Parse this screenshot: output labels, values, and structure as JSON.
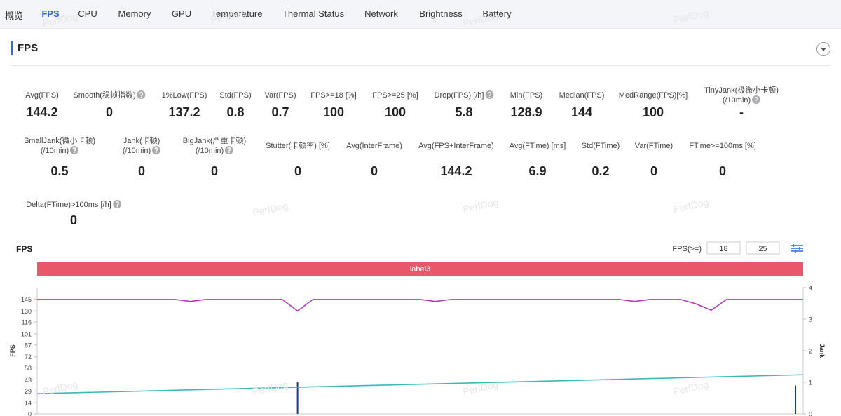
{
  "tabs": [
    "概览",
    "FPS",
    "CPU",
    "Memory",
    "GPU",
    "Temperature",
    "Thermal Status",
    "Network",
    "Brightness",
    "Battery"
  ],
  "active_tab": 1,
  "section_title": "FPS",
  "watermark": "PerfDog",
  "metrics": [
    [
      {
        "label": [
          "Avg(FPS)"
        ],
        "value": "144.2"
      },
      {
        "label": [
          "Smooth(稳帧指数)"
        ],
        "value": "0",
        "help": true
      },
      {
        "label": [
          "1%Low(FPS)"
        ],
        "value": "137.2"
      },
      {
        "label": [
          "Std(FPS)"
        ],
        "value": "0.8"
      },
      {
        "label": [
          "Var(FPS)"
        ],
        "value": "0.7"
      },
      {
        "label": [
          "FPS>=18 [%]"
        ],
        "value": "100"
      },
      {
        "label": [
          "FPS>=25 [%]"
        ],
        "value": "100"
      },
      {
        "label": [
          "Drop(FPS) [/h]"
        ],
        "value": "5.8",
        "help": true
      },
      {
        "label": [
          "Min(FPS)"
        ],
        "value": "128.9"
      },
      {
        "label": [
          "Median(FPS)"
        ],
        "value": "144"
      },
      {
        "label": [
          "MedRange(FPS)[%]"
        ],
        "value": "100"
      },
      {
        "label": [
          "TinyJank(极微小卡顿)",
          "(/10min)"
        ],
        "value": "-",
        "help": true
      }
    ],
    [
      {
        "label": [
          "SmallJank(微小卡顿)",
          "(/10min)"
        ],
        "value": "0.5",
        "help": true
      },
      {
        "label": [
          "Jank(卡顿)",
          "(/10min)"
        ],
        "value": "0",
        "help": true
      },
      {
        "label": [
          "BigJank(严重卡顿)",
          "(/10min)"
        ],
        "value": "0",
        "help": true
      },
      {
        "label": [
          "Stutter(卡顿率) [%]"
        ],
        "value": "0"
      },
      {
        "label": [
          "Avg(InterFrame)"
        ],
        "value": "0"
      },
      {
        "label": [
          "Avg(FPS+InterFrame)"
        ],
        "value": "144.2"
      },
      {
        "label": [
          "Avg(FTime) [ms]"
        ],
        "value": "6.9"
      },
      {
        "label": [
          "Std(FTime)"
        ],
        "value": "0.2"
      },
      {
        "label": [
          "Var(FTime)"
        ],
        "value": "0"
      },
      {
        "label": [
          "FTime>=100ms [%]"
        ],
        "value": "0"
      }
    ],
    [
      {
        "label": [
          "Delta(FTime)>100ms [/h]"
        ],
        "value": "0",
        "help": true
      }
    ]
  ],
  "chart_data": {
    "type": "line",
    "title": "FPS",
    "threshold_label": "FPS(>=)",
    "thresholds": [
      18,
      25
    ],
    "band_label": "label3",
    "band_color": "#e9576a",
    "ylabel": "FPS",
    "y2label": "Jank",
    "xlim": [
      0,
      100
    ],
    "ylim": [
      0,
      159.5
    ],
    "y2lim": [
      0,
      4
    ],
    "yticks": [
      0,
      14,
      29,
      43,
      58,
      72,
      87,
      101,
      116,
      130,
      145
    ],
    "y2ticks": [
      0,
      1,
      2,
      3,
      4
    ],
    "series": [
      {
        "color": "#b03cb8",
        "kind": "line",
        "x": [
          0,
          2,
          4,
          6,
          8,
          10,
          12,
          14,
          16,
          18,
          20,
          22,
          24,
          26,
          28,
          30,
          32,
          34,
          36,
          38,
          40,
          42,
          44,
          46,
          48,
          50,
          52,
          54,
          56,
          58,
          60,
          62,
          64,
          66,
          68,
          70,
          72,
          74,
          76,
          78,
          80,
          82,
          84,
          86,
          88,
          90,
          92,
          94,
          96,
          98,
          100
        ],
        "values": [
          144.5,
          144.5,
          144.5,
          144.5,
          144.5,
          144.5,
          144.5,
          144.5,
          144.5,
          144.5,
          142,
          144.5,
          144.5,
          144.5,
          144.5,
          144.5,
          144.5,
          130,
          144.5,
          144.5,
          144.5,
          144.5,
          144.5,
          144.5,
          144.5,
          144.5,
          142,
          144.5,
          144.5,
          144.5,
          144.5,
          144.5,
          144.5,
          144.5,
          144.5,
          144.5,
          144.5,
          144.5,
          144.5,
          142,
          144.5,
          144.5,
          144.5,
          139,
          131,
          144.5,
          144.5,
          144.5,
          144.5,
          144.5,
          144.5
        ]
      },
      {
        "color": "#1a3b8c",
        "kind": "bar",
        "axis": "y2",
        "x": [
          34,
          99
        ],
        "values": [
          1,
          0.9
        ]
      },
      {
        "color": "#3bb8b8",
        "kind": "line",
        "axis": "y2",
        "x": [
          0,
          100
        ],
        "values": [
          0.64,
          1.24
        ]
      }
    ]
  }
}
